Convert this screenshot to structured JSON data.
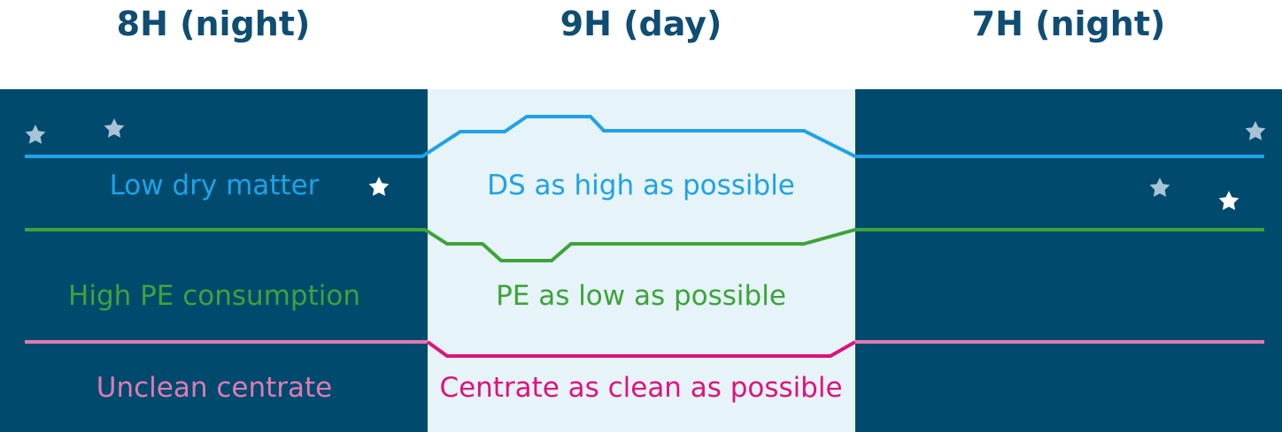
{
  "periods": [
    {
      "title": "8H (night)"
    },
    {
      "title": "9H (day)"
    },
    {
      "title": "7H (night)"
    }
  ],
  "labels": {
    "night_dry_matter": "Low dry matter",
    "day_dry_matter": "DS as high as possible",
    "night_pe": "High PE consumption",
    "day_pe": "PE as low as possible",
    "night_centrate": "Unclean centrate",
    "day_centrate": "Centrate as clean as possible"
  },
  "colors": {
    "night_background": "#004a6e",
    "day_background": "#e6f3f9",
    "title_text": "#0f4d73",
    "dry_matter": "#1fa2e6",
    "pe": "#3ea33a",
    "centrate_night": "#e07ab3",
    "centrate_day": "#e0127a",
    "star_light": "#ffffff",
    "star_dim": "#a9c3d6"
  },
  "icons": [
    "star-icon"
  ]
}
